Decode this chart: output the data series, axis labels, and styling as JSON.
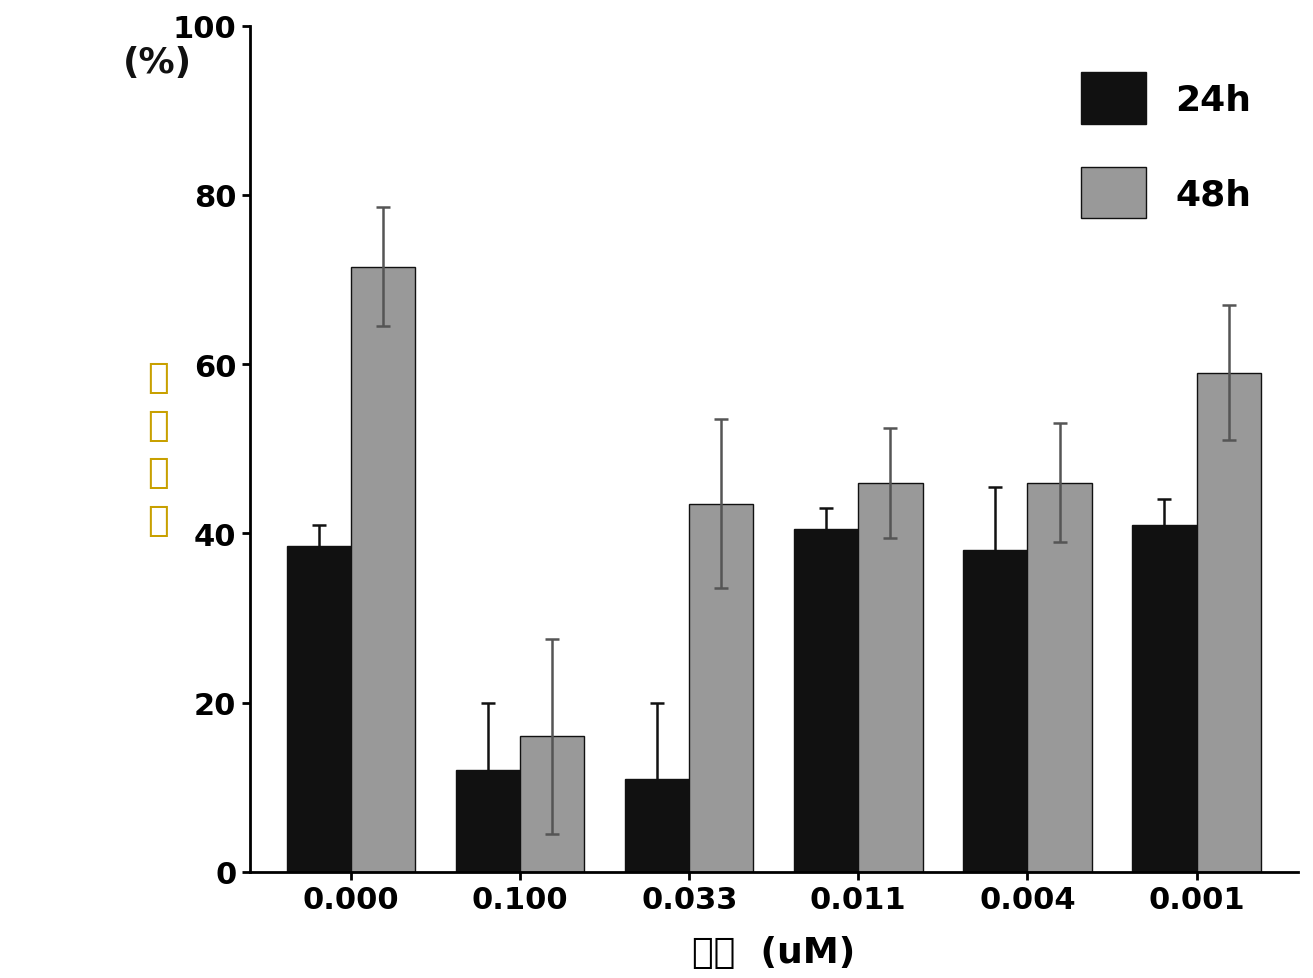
{
  "categories": [
    "0.000",
    "0.100",
    "0.033",
    "0.011",
    "0.004",
    "0.001"
  ],
  "values_24h": [
    38.5,
    12.0,
    11.0,
    40.5,
    38.0,
    41.0
  ],
  "values_48h": [
    71.5,
    16.0,
    43.5,
    46.0,
    46.0,
    59.0
  ],
  "errors_24h": [
    2.5,
    8.0,
    9.0,
    2.5,
    7.5,
    3.0
  ],
  "errors_48h": [
    7.0,
    11.5,
    10.0,
    6.5,
    7.0,
    8.0
  ],
  "color_24h": "#111111",
  "color_48h": "#999999",
  "xlabel": "浓度  (uM)",
  "percent_label": "(%)",
  "chinese_ylabel": "迁\n移\n指\n数",
  "ylim": [
    0,
    100
  ],
  "yticks": [
    0,
    20,
    40,
    60,
    80,
    100
  ],
  "legend_24h": "24h",
  "legend_48h": "48h",
  "bar_width": 0.38,
  "edge_color": "#111111",
  "background_color": "#ffffff",
  "label_fontsize": 26,
  "tick_fontsize": 22,
  "legend_fontsize": 26,
  "ylabel_fontsize": 26,
  "chinese_color": "#c8a000"
}
